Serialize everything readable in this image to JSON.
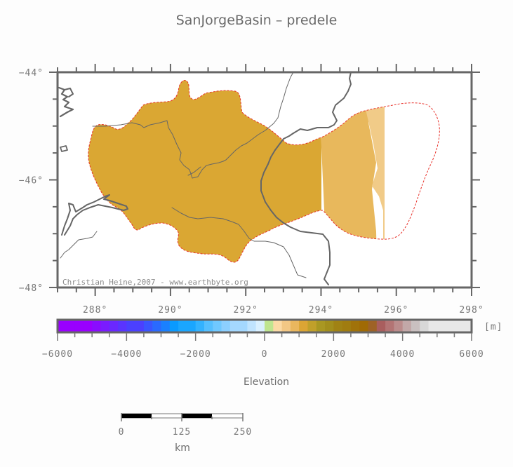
{
  "title": "SanJorgeBasin – predele",
  "map": {
    "region": {
      "lon_min": 287,
      "lon_max": 298,
      "lat_min": -48,
      "lat_max": -44
    },
    "x_ticks": [
      {
        "label": "288°",
        "value": 288
      },
      {
        "label": "290°",
        "value": 290
      },
      {
        "label": "292°",
        "value": 292
      },
      {
        "label": "294°",
        "value": 294
      },
      {
        "label": "296°",
        "value": 296
      },
      {
        "label": "298°",
        "value": 298
      }
    ],
    "y_ticks": [
      {
        "label": "−44°",
        "value": -44
      },
      {
        "label": "−46°",
        "value": -46
      },
      {
        "label": "−48°",
        "value": -48
      }
    ],
    "credit": "Christian Heine,2007 - www.earthbyte.org",
    "colors": {
      "basin_main": "#daa733",
      "basin_mid": "#e8b85c",
      "basin_light": "#f1cb88",
      "outline": "#e8312a",
      "coastline": "#666666",
      "frame": "#666666"
    }
  },
  "colorbar": {
    "label": "Elevation",
    "unit": "[m]",
    "min": -6000,
    "max": 6000,
    "ticks": [
      {
        "label": "−6000",
        "value": -6000
      },
      {
        "label": "−4000",
        "value": -4000
      },
      {
        "label": "−2000",
        "value": -2000
      },
      {
        "label": "0",
        "value": 0
      },
      {
        "label": "2000",
        "value": 2000
      },
      {
        "label": "4000",
        "value": 4000
      },
      {
        "label": "6000",
        "value": 6000
      }
    ],
    "colors": [
      "#9900ff",
      "#9900ff",
      "#9900ff",
      "#9900ff",
      "#8a0cff",
      "#7a1bff",
      "#6a28ff",
      "#5a34ff",
      "#4b40ff",
      "#4b40ff",
      "#3a55ff",
      "#2a6aff",
      "#1a80ff",
      "#0a9aff",
      "#1aa6ff",
      "#1aa6ff",
      "#33b2ff",
      "#55bfff",
      "#70c8ff",
      "#8ccfff",
      "#a4d8ff",
      "#a4d8ff",
      "#c0e4ff",
      "#daf0ff",
      "#bfe58f",
      "#fcdaa6",
      "#f3c785",
      "#eab75e",
      "#dca534",
      "#c1a02a",
      "#a99722",
      "#a28e1c",
      "#a08214",
      "#a07c10",
      "#a0720a",
      "#a06a04",
      "#9e6226",
      "#a95e5e",
      "#b37474",
      "#bb8c8c",
      "#c2a8a8",
      "#c9c0c0",
      "#d8d8d8",
      "#e8e8e8",
      "#e8e8e8",
      "#e8e8e8",
      "#e8e8e8",
      "#e8e8e8"
    ]
  },
  "scalebar": {
    "ticks": [
      "0",
      "125",
      "250"
    ],
    "unit": "km"
  }
}
